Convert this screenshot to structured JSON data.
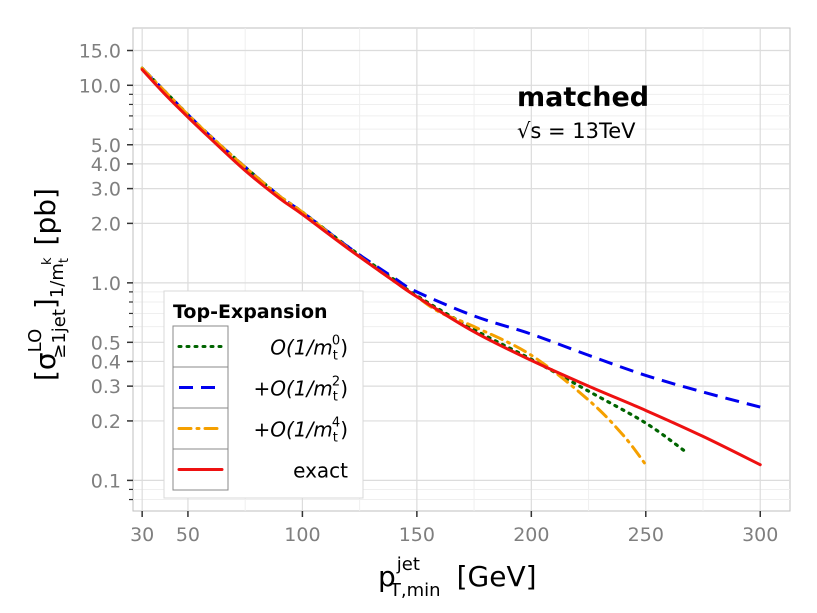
{
  "chart_data": {
    "type": "line",
    "title": "",
    "annotation": {
      "title": "matched",
      "subtitle": "√s = 13TeV"
    },
    "xlabel": {
      "text": "p",
      "sup": "jet",
      "sub": "T,min",
      "unit": "[GeV]"
    },
    "ylabel": {
      "bracket_open": "[",
      "sigma": "σ",
      "sigma_sup": "LO",
      "sigma_sub": "≥1jet",
      "bracket_close": "]",
      "sub": "1/m",
      "sub_sub": "t",
      "sub_sup": "k",
      "unit": "[pb]"
    },
    "x_scale": "linear",
    "y_scale": "log10",
    "xlim": [
      26,
      313
    ],
    "ylim": [
      0.07,
      19.5
    ],
    "x_ticks": [
      30,
      50,
      100,
      150,
      200,
      250,
      300
    ],
    "y_ticks": [
      {
        "value": 0.1,
        "label": "0.1"
      },
      {
        "value": 0.2,
        "label": "0.2"
      },
      {
        "value": 0.3,
        "label": "0.3"
      },
      {
        "value": 0.4,
        "label": "0.4"
      },
      {
        "value": 0.5,
        "label": "0.5"
      },
      {
        "value": 1.0,
        "label": "1.0"
      },
      {
        "value": 2.0,
        "label": "2.0"
      },
      {
        "value": 3.0,
        "label": "3.0"
      },
      {
        "value": 4.0,
        "label": "4.0"
      },
      {
        "value": 5.0,
        "label": "5.0"
      },
      {
        "value": 10.0,
        "label": "10.0"
      },
      {
        "value": 15.0,
        "label": "15.0"
      }
    ],
    "y_minor_ticks": [
      0.08,
      0.09,
      0.6,
      0.7,
      0.8,
      0.9,
      6,
      7,
      8,
      9
    ],
    "grid": true,
    "legend": {
      "title": "Top-Expansion",
      "position": "bottom-left",
      "entries": [
        {
          "series": 0,
          "prefix": "",
          "label": "O(1/m",
          "sub": "t",
          "sup": "0",
          "close": ")"
        },
        {
          "series": 1,
          "prefix": "+",
          "label": "O(1/m",
          "sub": "t",
          "sup": "2",
          "close": ")"
        },
        {
          "series": 2,
          "prefix": "+",
          "label": "O(1/m",
          "sub": "t",
          "sup": "4",
          "close": ")"
        },
        {
          "series": 3,
          "prefix": "",
          "label": "exact",
          "sub": "",
          "sup": "",
          "close": ""
        }
      ]
    },
    "series": [
      {
        "name": "O(1/m_t^0)",
        "color": "#006400",
        "dash": "dotted",
        "x": [
          30,
          40,
          50,
          60,
          75,
          90,
          100,
          120,
          140,
          150,
          175,
          200,
          225,
          250,
          268
        ],
        "y": [
          12.2,
          9.3,
          7.1,
          5.5,
          3.85,
          2.75,
          2.28,
          1.52,
          1.04,
          0.86,
          0.58,
          0.41,
          0.283,
          0.195,
          0.138
        ]
      },
      {
        "name": "+O(1/m_t^2)",
        "color": "#0000ee",
        "dash": "dashed",
        "x": [
          30,
          40,
          50,
          60,
          75,
          90,
          100,
          120,
          140,
          150,
          175,
          200,
          225,
          250,
          275,
          300
        ],
        "y": [
          12.2,
          9.3,
          7.1,
          5.5,
          3.85,
          2.75,
          2.28,
          1.52,
          1.06,
          0.9,
          0.68,
          0.55,
          0.43,
          0.34,
          0.28,
          0.235
        ]
      },
      {
        "name": "+O(1/m_t^4)",
        "color": "#f5a000",
        "dash": "dashdot",
        "x": [
          30,
          40,
          50,
          60,
          75,
          90,
          100,
          120,
          140,
          150,
          160,
          175,
          200,
          225,
          240,
          250
        ],
        "y": [
          12.2,
          9.3,
          7.1,
          5.5,
          3.85,
          2.75,
          2.28,
          1.5,
          1.02,
          0.85,
          0.71,
          0.6,
          0.43,
          0.255,
          0.17,
          0.12
        ]
      },
      {
        "name": "exact",
        "color": "#ee1111",
        "dash": "solid",
        "x": [
          30,
          40,
          50,
          60,
          75,
          90,
          100,
          120,
          140,
          150,
          175,
          200,
          225,
          250,
          275,
          300
        ],
        "y": [
          12.0,
          9.0,
          6.9,
          5.35,
          3.7,
          2.68,
          2.22,
          1.49,
          1.02,
          0.85,
          0.565,
          0.405,
          0.3,
          0.226,
          0.167,
          0.12
        ]
      }
    ]
  }
}
